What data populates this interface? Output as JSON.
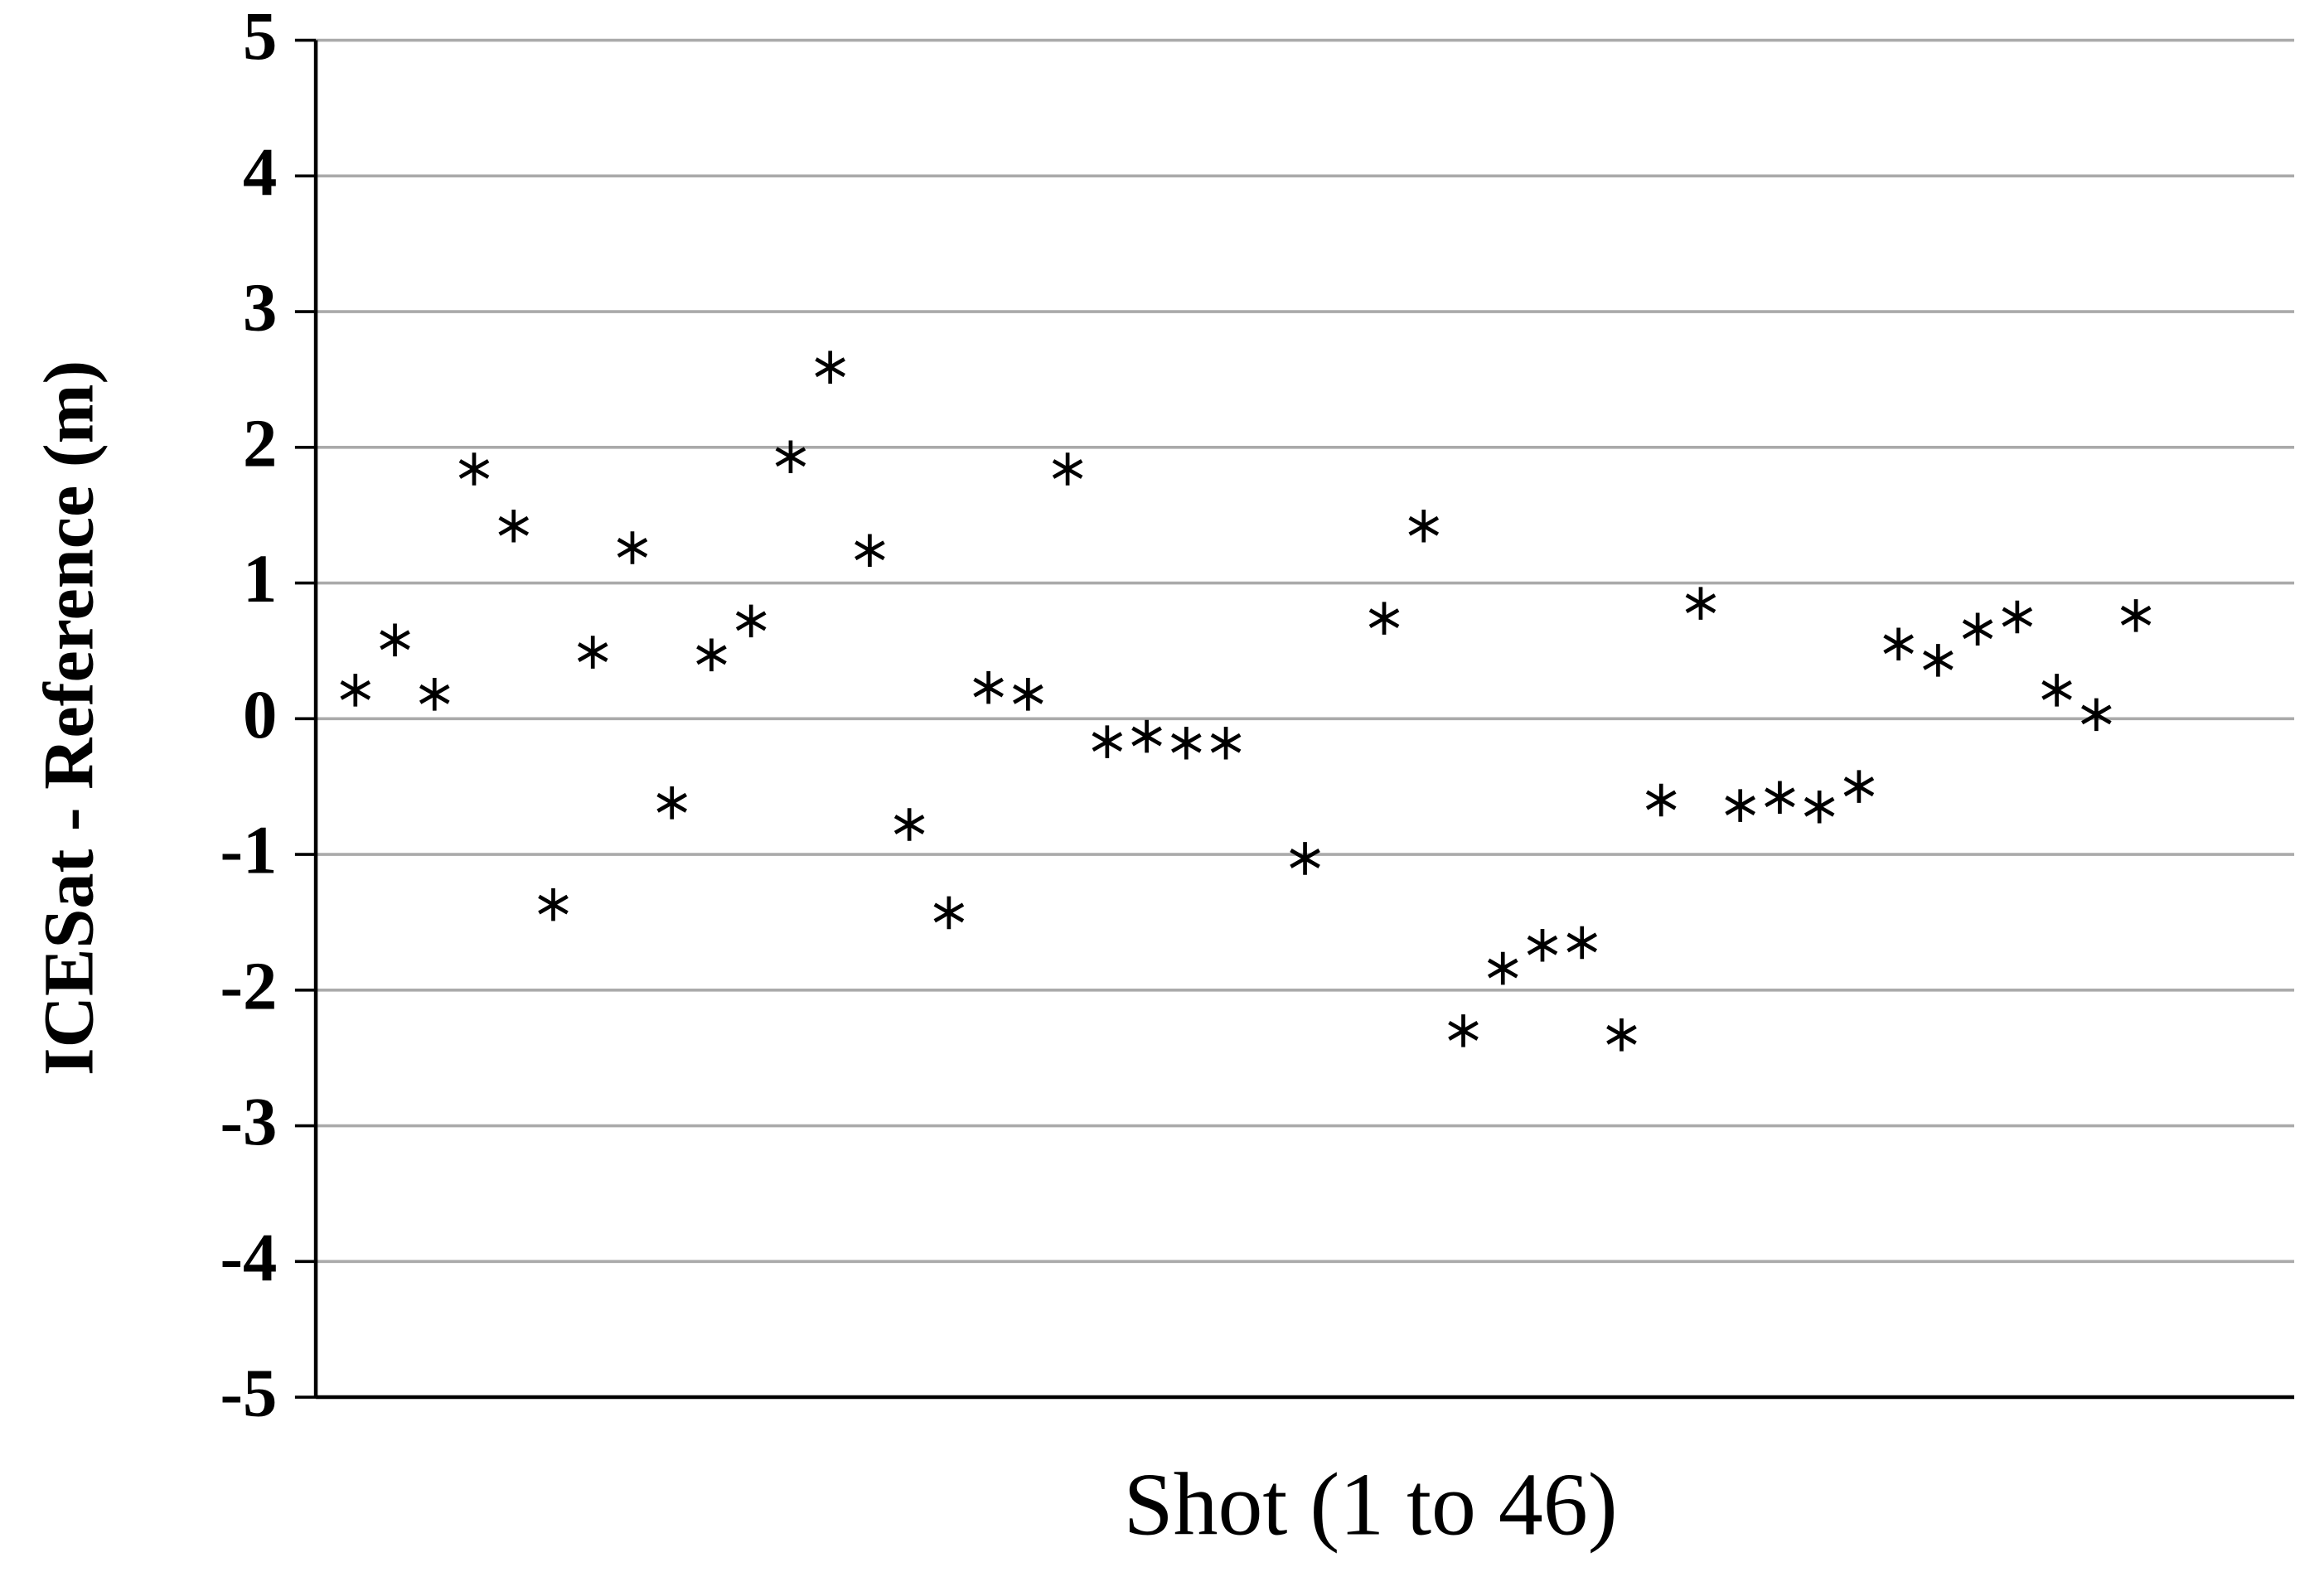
{
  "chart_data": {
    "type": "scatter",
    "x_label": "Shot (1 to 46)",
    "y_label": "ICESat - Reference (m)",
    "x": [
      1,
      2,
      3,
      4,
      5,
      6,
      7,
      8,
      9,
      10,
      11,
      12,
      13,
      14,
      15,
      16,
      17,
      18,
      19,
      20,
      21,
      22,
      23,
      25,
      27,
      28,
      29,
      30,
      31,
      32,
      33,
      34,
      35,
      36,
      37,
      38,
      39,
      40,
      41,
      42,
      43,
      44,
      45,
      46
    ],
    "values": [
      0.21,
      0.58,
      0.18,
      1.84,
      1.42,
      -1.37,
      0.49,
      1.26,
      -0.62,
      0.47,
      0.72,
      1.93,
      2.59,
      1.24,
      -0.78,
      -1.43,
      0.23,
      0.18,
      1.84,
      -0.17,
      -0.13,
      -0.18,
      -0.18,
      -1.03,
      0.74,
      1.42,
      -2.3,
      -1.84,
      -1.67,
      -1.65,
      -2.33,
      -0.6,
      0.85,
      -0.64,
      -0.58,
      -0.65,
      -0.5,
      0.55,
      0.43,
      0.66,
      0.75,
      0.21,
      0.03,
      0.76
    ],
    "color": "#000000",
    "xlim": [
      0,
      50
    ],
    "ylim": [
      -5,
      5
    ],
    "yticks": [
      -5,
      -4,
      -3,
      -2,
      -1,
      0,
      1,
      2,
      3,
      4,
      5
    ],
    "grid": true
  }
}
